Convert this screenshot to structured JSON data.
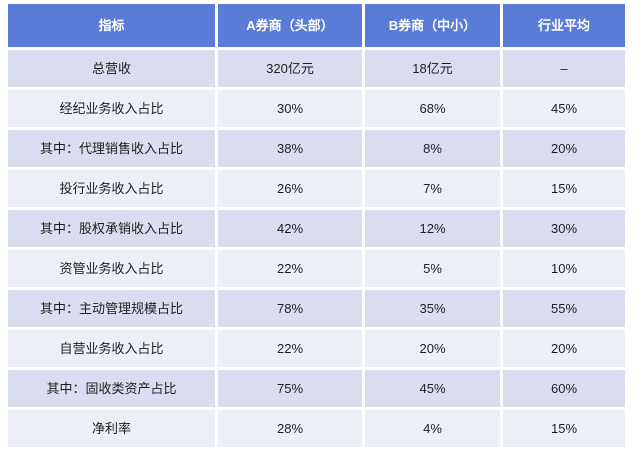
{
  "table": {
    "columns": [
      "指标",
      "A券商（头部）",
      "B券商（中小）",
      "行业平均"
    ],
    "rows": [
      [
        "总营收",
        "320亿元",
        "18亿元",
        "–"
      ],
      [
        "经纪业务收入占比",
        "30%",
        "68%",
        "45%"
      ],
      [
        "其中：代理销售收入占比",
        "38%",
        "8%",
        "20%"
      ],
      [
        "投行业务收入占比",
        "26%",
        "7%",
        "15%"
      ],
      [
        "其中：股权承销收入占比",
        "42%",
        "12%",
        "30%"
      ],
      [
        "资管业务收入占比",
        "22%",
        "5%",
        "10%"
      ],
      [
        "其中：主动管理规模占比",
        "78%",
        "35%",
        "55%"
      ],
      [
        "自营业务收入占比",
        "22%",
        "20%",
        "20%"
      ],
      [
        "其中：固收类资产占比",
        "75%",
        "45%",
        "60%"
      ],
      [
        "净利率",
        "28%",
        "4%",
        "15%"
      ]
    ],
    "colors": {
      "header_bg": "#5B7CD6",
      "header_text": "#FFFFFF",
      "row_odd_bg": "#D9DDEF",
      "row_even_bg": "#EDEFF7",
      "body_text": "#1F1F1F",
      "gap": "#FFFFFF"
    }
  },
  "chart_data": {
    "type": "table",
    "title": "",
    "columns": [
      "指标",
      "A券商（头部）",
      "B券商（中小）",
      "行业平均"
    ],
    "rows": [
      {
        "指标": "总营收",
        "A券商（头部）": "320亿元",
        "B券商（中小）": "18亿元",
        "行业平均": "–"
      },
      {
        "指标": "经纪业务收入占比",
        "A券商（头部）": "30%",
        "B券商（中小）": "68%",
        "行业平均": "45%"
      },
      {
        "指标": "其中：代理销售收入占比",
        "A券商（头部）": "38%",
        "B券商（中小）": "8%",
        "行业平均": "20%"
      },
      {
        "指标": "投行业务收入占比",
        "A券商（头部）": "26%",
        "B券商（中小）": "7%",
        "行业平均": "15%"
      },
      {
        "指标": "其中：股权承销收入占比",
        "A券商（头部）": "42%",
        "B券商（中小）": "12%",
        "行业平均": "30%"
      },
      {
        "指标": "资管业务收入占比",
        "A券商（头部）": "22%",
        "B券商（中小）": "5%",
        "行业平均": "10%"
      },
      {
        "指标": "其中：主动管理规模占比",
        "A券商（头部）": "78%",
        "B券商（中小）": "35%",
        "行业平均": "55%"
      },
      {
        "指标": "自营业务收入占比",
        "A券商（头部）": "22%",
        "B券商（中小）": "20%",
        "行业平均": "20%"
      },
      {
        "指标": "其中：固收类资产占比",
        "A券商（头部）": "75%",
        "B券商（中小）": "45%",
        "行业平均": "60%"
      },
      {
        "指标": "净利率",
        "A券商（头部）": "28%",
        "B券商（中小）": "4%",
        "行业平均": "15%"
      }
    ]
  }
}
